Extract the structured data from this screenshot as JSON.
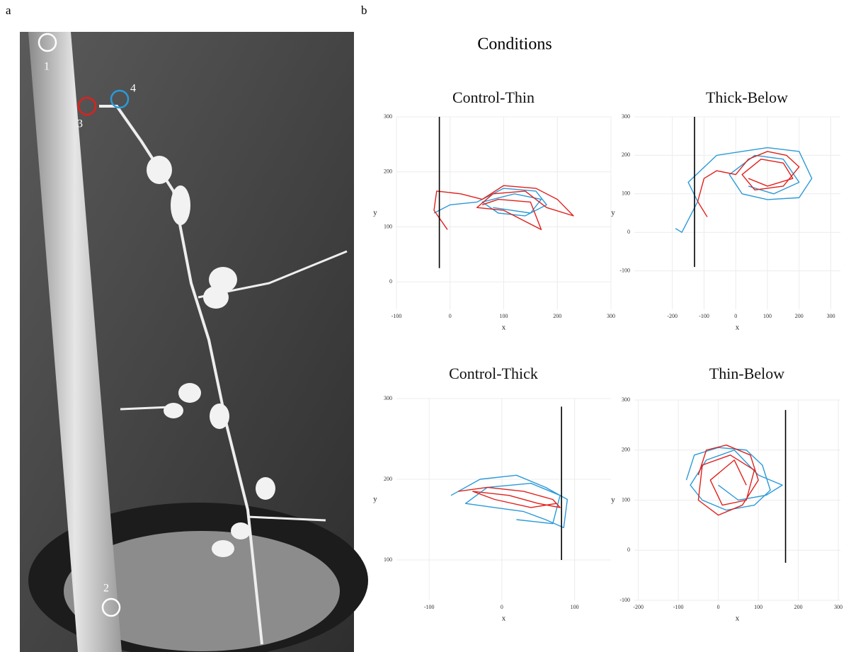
{
  "panel_labels": [
    "a",
    "b"
  ],
  "figure_title": "Conditions",
  "photo": {
    "markers": [
      {
        "label": "1",
        "color": "#ffffff"
      },
      {
        "label": "2",
        "color": "#ffffff"
      },
      {
        "label": "3",
        "color": "#e0201c"
      },
      {
        "label": "4",
        "color": "#2a9ad8"
      }
    ]
  },
  "chart_data": [
    {
      "type": "line",
      "title": "Control-Thin",
      "xlabel": "x",
      "ylabel": "y",
      "xlim": [
        -100,
        300
      ],
      "ylim": [
        -50,
        300
      ],
      "xticks": [
        -100,
        0,
        100,
        200,
        300
      ],
      "yticks": [
        0,
        100,
        200,
        300
      ],
      "grid": true,
      "reference_line": {
        "x": -20,
        "y": [
          25,
          300
        ],
        "color": "#000000"
      },
      "series": [
        {
          "color": "#2a9ad8",
          "x": [
            -30,
            0,
            50,
            100,
            160,
            180,
            140,
            90,
            60,
            120,
            170,
            150,
            80
          ],
          "y": [
            125,
            140,
            145,
            170,
            165,
            140,
            120,
            125,
            145,
            160,
            150,
            125,
            135
          ]
        },
        {
          "color": "#e0201c",
          "x": [
            -5,
            -30,
            -25,
            20,
            60,
            100,
            160,
            200,
            230,
            180,
            140,
            80,
            50,
            100,
            170,
            150,
            90,
            60
          ],
          "y": [
            95,
            130,
            165,
            160,
            150,
            175,
            170,
            150,
            120,
            135,
            165,
            160,
            135,
            130,
            95,
            145,
            150,
            140
          ]
        }
      ]
    },
    {
      "type": "line",
      "title": "Thick-Below",
      "xlabel": "x",
      "ylabel": "y",
      "xlim": [
        -320,
        330
      ],
      "ylim": [
        -200,
        300
      ],
      "xticks": [
        -200,
        -100,
        0,
        100,
        200,
        300
      ],
      "yticks": [
        -100,
        0,
        100,
        200,
        300
      ],
      "grid": true,
      "reference_line": {
        "x": -130,
        "y": [
          -90,
          300
        ],
        "color": "#000000"
      },
      "series": [
        {
          "color": "#2a9ad8",
          "x": [
            -190,
            -170,
            -120,
            -150,
            -60,
            20,
            100,
            200,
            240,
            200,
            100,
            20,
            -20,
            60,
            150,
            200,
            120,
            40
          ],
          "y": [
            10,
            0,
            80,
            130,
            200,
            210,
            220,
            210,
            140,
            90,
            85,
            100,
            150,
            200,
            190,
            130,
            100,
            120
          ]
        },
        {
          "color": "#e0201c",
          "x": [
            -90,
            -120,
            -100,
            -60,
            0,
            40,
            100,
            160,
            200,
            150,
            60,
            20,
            80,
            150,
            180,
            100,
            40
          ],
          "y": [
            40,
            80,
            140,
            160,
            150,
            190,
            210,
            200,
            170,
            120,
            110,
            150,
            190,
            180,
            140,
            120,
            140
          ]
        }
      ]
    },
    {
      "type": "line",
      "title": "Control-Thick",
      "xlabel": "x",
      "ylabel": "y",
      "xlim": [
        -145,
        150
      ],
      "ylim": [
        50,
        300
      ],
      "xticks": [
        -100,
        0,
        100
      ],
      "yticks": [
        100,
        200,
        300
      ],
      "grid": true,
      "reference_line": {
        "x": 82,
        "y": [
          100,
          290
        ],
        "color": "#000000"
      },
      "series": [
        {
          "color": "#2a9ad8",
          "x": [
            -70,
            -30,
            20,
            60,
            90,
            85,
            60,
            30,
            -10,
            -50,
            -20,
            40,
            80,
            70,
            20
          ],
          "y": [
            180,
            200,
            205,
            190,
            175,
            140,
            150,
            160,
            165,
            170,
            190,
            195,
            180,
            145,
            150
          ]
        },
        {
          "color": "#e0201c",
          "x": [
            -60,
            -20,
            30,
            70,
            80,
            50,
            10,
            -40,
            -10,
            40,
            75
          ],
          "y": [
            185,
            190,
            185,
            175,
            165,
            170,
            180,
            185,
            175,
            165,
            170
          ]
        }
      ]
    },
    {
      "type": "line",
      "title": "Thin-Below",
      "xlabel": "x",
      "ylabel": "y",
      "xlim": [
        -210,
        305
      ],
      "ylim": [
        -100,
        300
      ],
      "xticks": [
        -200,
        -100,
        0,
        100,
        200,
        300
      ],
      "yticks": [
        -100,
        0,
        100,
        200,
        300
      ],
      "grid": true,
      "reference_line": {
        "x": 168,
        "y": [
          -25,
          280
        ],
        "color": "#000000"
      },
      "series": [
        {
          "color": "#2a9ad8",
          "x": [
            -80,
            -60,
            0,
            70,
            110,
            130,
            90,
            20,
            -40,
            -70,
            -30,
            40,
            100,
            160,
            120,
            50,
            0
          ],
          "y": [
            140,
            190,
            205,
            200,
            170,
            120,
            90,
            80,
            100,
            130,
            180,
            200,
            150,
            130,
            110,
            100,
            130
          ]
        },
        {
          "color": "#e0201c",
          "x": [
            -50,
            -30,
            20,
            80,
            100,
            60,
            0,
            -50,
            -40,
            30,
            90,
            70,
            10,
            -20,
            40,
            70
          ],
          "y": [
            150,
            200,
            210,
            190,
            140,
            90,
            70,
            100,
            170,
            190,
            160,
            100,
            90,
            140,
            180,
            130
          ]
        }
      ]
    }
  ]
}
